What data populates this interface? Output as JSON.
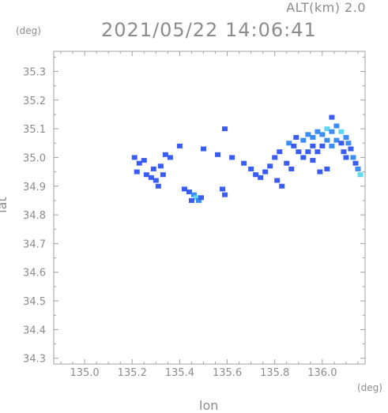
{
  "header": {
    "altitude": "ALT(km) 2.0",
    "timestamp": "2021/05/22 14:06:41"
  },
  "axes": {
    "x_unit": "(deg)",
    "y_unit": "(deg)",
    "xlabel": "lon",
    "ylabel": "lat"
  },
  "chart_data": {
    "type": "heatmap",
    "xlim": [
      134.87,
      136.18
    ],
    "ylim": [
      34.28,
      35.37
    ],
    "x_ticks": [
      "135.0",
      "135.2",
      "135.4",
      "135.6",
      "135.8",
      "136.0"
    ],
    "y_ticks": [
      "34.3",
      "34.4",
      "34.5",
      "34.6",
      "34.7",
      "34.8",
      "34.9",
      "35.0",
      "35.1",
      "35.2",
      "35.3"
    ],
    "grid": false,
    "colors": {
      "weak": "#3a5cf0",
      "moderate": "#3c8cf5",
      "strong": "#5fd8f2"
    },
    "cells": [
      {
        "lon": 135.21,
        "lat": 35.0,
        "level": "weak"
      },
      {
        "lon": 135.23,
        "lat": 34.98,
        "level": "weak"
      },
      {
        "lon": 135.25,
        "lat": 34.99,
        "level": "weak"
      },
      {
        "lon": 135.22,
        "lat": 34.95,
        "level": "weak"
      },
      {
        "lon": 135.26,
        "lat": 34.94,
        "level": "weak"
      },
      {
        "lon": 135.28,
        "lat": 34.93,
        "level": "weak"
      },
      {
        "lon": 135.3,
        "lat": 34.92,
        "level": "weak"
      },
      {
        "lon": 135.31,
        "lat": 34.9,
        "level": "weak"
      },
      {
        "lon": 135.29,
        "lat": 34.96,
        "level": "weak"
      },
      {
        "lon": 135.32,
        "lat": 34.97,
        "level": "weak"
      },
      {
        "lon": 135.34,
        "lat": 35.01,
        "level": "weak"
      },
      {
        "lon": 135.36,
        "lat": 35.0,
        "level": "weak"
      },
      {
        "lon": 135.33,
        "lat": 34.94,
        "level": "weak"
      },
      {
        "lon": 135.42,
        "lat": 34.89,
        "level": "weak"
      },
      {
        "lon": 135.44,
        "lat": 34.88,
        "level": "weak"
      },
      {
        "lon": 135.46,
        "lat": 34.87,
        "level": "moderate"
      },
      {
        "lon": 135.47,
        "lat": 34.86,
        "level": "strong"
      },
      {
        "lon": 135.48,
        "lat": 34.85,
        "level": "moderate"
      },
      {
        "lon": 135.49,
        "lat": 34.86,
        "level": "weak"
      },
      {
        "lon": 135.45,
        "lat": 34.85,
        "level": "weak"
      },
      {
        "lon": 135.4,
        "lat": 35.04,
        "level": "weak"
      },
      {
        "lon": 135.5,
        "lat": 35.03,
        "level": "weak"
      },
      {
        "lon": 135.56,
        "lat": 35.01,
        "level": "weak"
      },
      {
        "lon": 135.59,
        "lat": 35.1,
        "level": "weak"
      },
      {
        "lon": 135.58,
        "lat": 34.89,
        "level": "weak"
      },
      {
        "lon": 135.59,
        "lat": 34.87,
        "level": "weak"
      },
      {
        "lon": 135.62,
        "lat": 35.0,
        "level": "weak"
      },
      {
        "lon": 135.67,
        "lat": 34.98,
        "level": "weak"
      },
      {
        "lon": 135.7,
        "lat": 34.96,
        "level": "weak"
      },
      {
        "lon": 135.72,
        "lat": 34.94,
        "level": "weak"
      },
      {
        "lon": 135.74,
        "lat": 34.93,
        "level": "weak"
      },
      {
        "lon": 135.76,
        "lat": 34.95,
        "level": "weak"
      },
      {
        "lon": 135.78,
        "lat": 34.97,
        "level": "weak"
      },
      {
        "lon": 135.8,
        "lat": 35.0,
        "level": "weak"
      },
      {
        "lon": 135.82,
        "lat": 35.02,
        "level": "weak"
      },
      {
        "lon": 135.81,
        "lat": 34.92,
        "level": "weak"
      },
      {
        "lon": 135.83,
        "lat": 34.9,
        "level": "weak"
      },
      {
        "lon": 135.85,
        "lat": 34.98,
        "level": "weak"
      },
      {
        "lon": 135.87,
        "lat": 34.96,
        "level": "weak"
      },
      {
        "lon": 135.86,
        "lat": 35.05,
        "level": "moderate"
      },
      {
        "lon": 135.88,
        "lat": 35.04,
        "level": "weak"
      },
      {
        "lon": 135.9,
        "lat": 35.02,
        "level": "weak"
      },
      {
        "lon": 135.92,
        "lat": 35.0,
        "level": "weak"
      },
      {
        "lon": 135.89,
        "lat": 35.07,
        "level": "weak"
      },
      {
        "lon": 135.92,
        "lat": 35.06,
        "level": "moderate"
      },
      {
        "lon": 135.94,
        "lat": 35.08,
        "level": "moderate"
      },
      {
        "lon": 135.96,
        "lat": 35.07,
        "level": "moderate"
      },
      {
        "lon": 135.98,
        "lat": 35.09,
        "level": "moderate"
      },
      {
        "lon": 136.0,
        "lat": 35.08,
        "level": "moderate"
      },
      {
        "lon": 136.02,
        "lat": 35.1,
        "level": "strong"
      },
      {
        "lon": 136.04,
        "lat": 35.09,
        "level": "moderate"
      },
      {
        "lon": 136.06,
        "lat": 35.11,
        "level": "moderate"
      },
      {
        "lon": 136.08,
        "lat": 35.09,
        "level": "strong"
      },
      {
        "lon": 136.1,
        "lat": 35.07,
        "level": "moderate"
      },
      {
        "lon": 136.11,
        "lat": 35.05,
        "level": "moderate"
      },
      {
        "lon": 136.12,
        "lat": 35.03,
        "level": "weak"
      },
      {
        "lon": 136.13,
        "lat": 35.0,
        "level": "moderate"
      },
      {
        "lon": 136.14,
        "lat": 34.98,
        "level": "weak"
      },
      {
        "lon": 136.15,
        "lat": 34.96,
        "level": "moderate"
      },
      {
        "lon": 136.16,
        "lat": 34.94,
        "level": "strong"
      },
      {
        "lon": 136.04,
        "lat": 35.04,
        "level": "moderate"
      },
      {
        "lon": 136.02,
        "lat": 35.06,
        "level": "moderate"
      },
      {
        "lon": 136.0,
        "lat": 35.04,
        "level": "weak"
      },
      {
        "lon": 135.98,
        "lat": 35.02,
        "level": "weak"
      },
      {
        "lon": 135.96,
        "lat": 35.04,
        "level": "weak"
      },
      {
        "lon": 135.94,
        "lat": 35.02,
        "level": "weak"
      },
      {
        "lon": 135.96,
        "lat": 34.99,
        "level": "weak"
      },
      {
        "lon": 135.99,
        "lat": 34.95,
        "level": "weak"
      },
      {
        "lon": 136.02,
        "lat": 34.96,
        "level": "weak"
      },
      {
        "lon": 136.04,
        "lat": 35.14,
        "level": "weak"
      },
      {
        "lon": 136.06,
        "lat": 35.06,
        "level": "moderate"
      },
      {
        "lon": 136.08,
        "lat": 35.05,
        "level": "weak"
      },
      {
        "lon": 136.09,
        "lat": 35.02,
        "level": "weak"
      },
      {
        "lon": 136.1,
        "lat": 35.0,
        "level": "weak"
      }
    ]
  }
}
